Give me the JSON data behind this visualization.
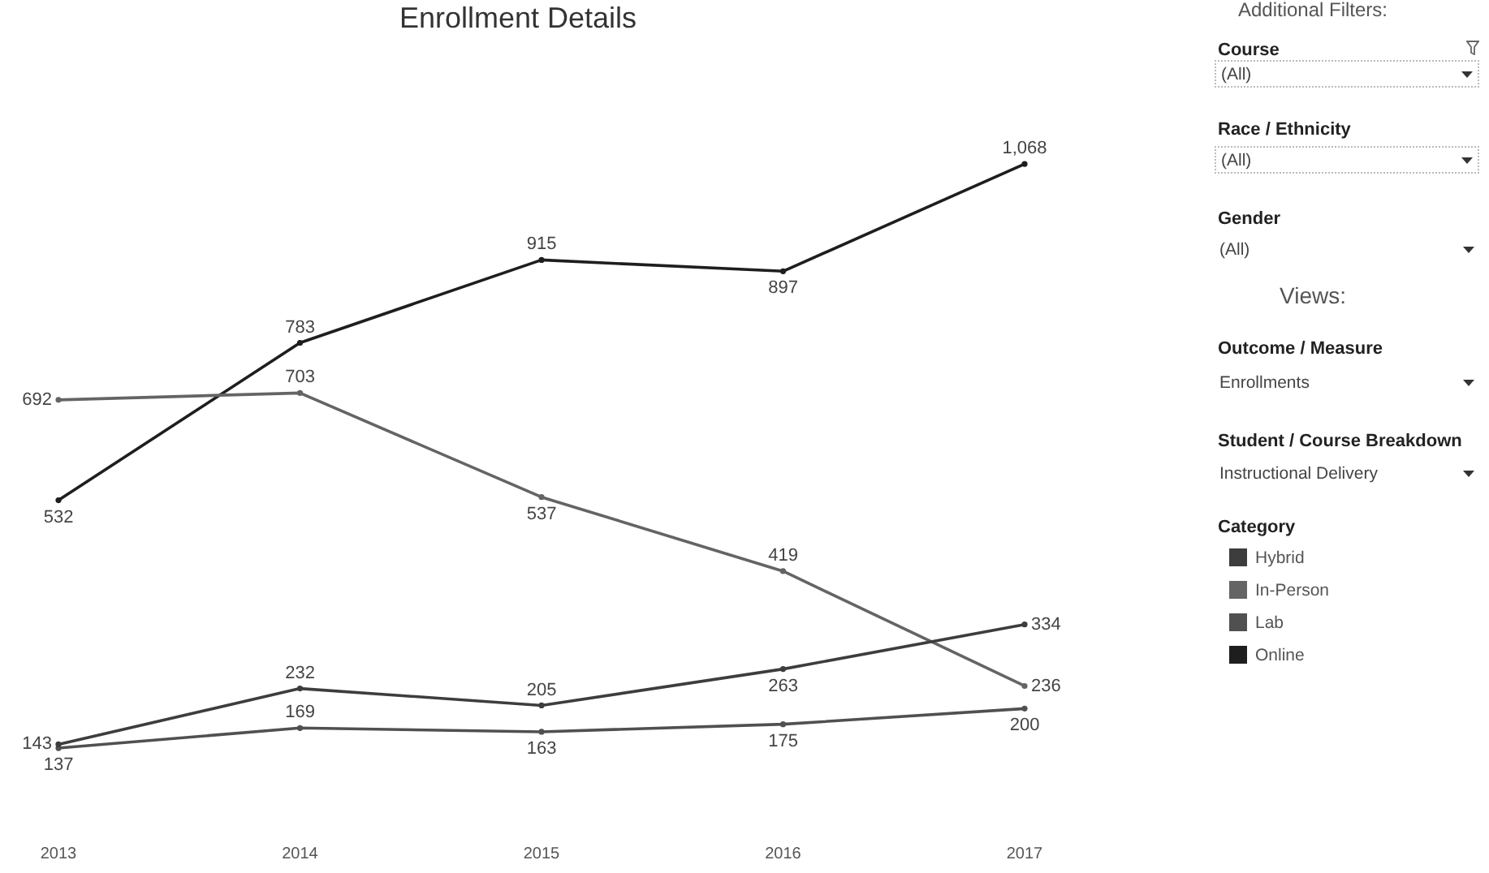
{
  "chart_data": {
    "type": "line",
    "title": "Enrollment Details",
    "categories": [
      "2013",
      "2014",
      "2015",
      "2016",
      "2017"
    ],
    "series": [
      {
        "name": "Hybrid",
        "color": "#3d3d3d",
        "values": [
          143,
          232,
          205,
          263,
          334
        ],
        "value_labels": [
          "143",
          "232",
          "205",
          "263",
          "334"
        ]
      },
      {
        "name": "In-Person",
        "color": "#646464",
        "values": [
          692,
          703,
          537,
          419,
          236
        ],
        "value_labels": [
          "692",
          "703",
          "537",
          "419",
          "236"
        ]
      },
      {
        "name": "Lab",
        "color": "#505050",
        "values": [
          137,
          169,
          163,
          175,
          200
        ],
        "value_labels": [
          "137",
          "169",
          "163",
          "175",
          "200"
        ]
      },
      {
        "name": "Online",
        "color": "#1e1e1e",
        "values": [
          532,
          783,
          915,
          897,
          1068
        ],
        "value_labels": [
          "532",
          "783",
          "915",
          "897",
          "1,068"
        ]
      }
    ],
    "tick_labels": "x",
    "grid": false,
    "marker": "circle",
    "legend": "right",
    "legend_title": "Category",
    "annotations": [
      "Additional Filters:",
      "Course",
      "(All)",
      "Race / Ethnicity",
      "(All)",
      "Gender",
      "(All)",
      "Views:",
      "Outcome / Measure",
      "Enrollments",
      "Student / Course Breakdown",
      "Instructional Delivery"
    ]
  }
}
